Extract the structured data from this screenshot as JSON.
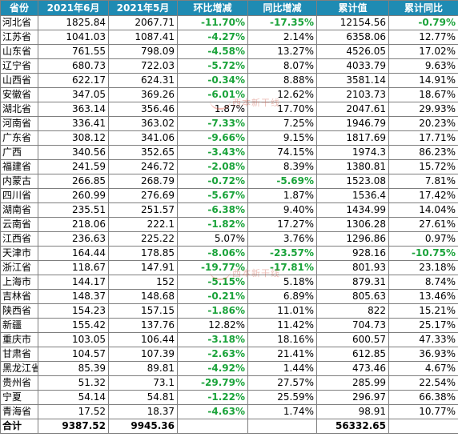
{
  "headers": [
    "省份",
    "2021年6月",
    "2021年5月",
    "环比增减",
    "同比增减",
    "累计值",
    "累计同比"
  ],
  "rows": [
    {
      "prov": "河北省",
      "jun": "1825.84",
      "may": "2067.71",
      "mom": "-11.70%",
      "yoy": "-17.35%",
      "cum": "12154.56",
      "cumyoy": "-0.79%"
    },
    {
      "prov": "江苏省",
      "jun": "1041.03",
      "may": "1087.41",
      "mom": "-4.27%",
      "yoy": "2.14%",
      "cum": "6358.06",
      "cumyoy": "12.77%"
    },
    {
      "prov": "山东省",
      "jun": "761.55",
      "may": "798.09",
      "mom": "-4.58%",
      "yoy": "13.27%",
      "cum": "4526.05",
      "cumyoy": "17.02%"
    },
    {
      "prov": "辽宁省",
      "jun": "680.73",
      "may": "722.03",
      "mom": "-5.72%",
      "yoy": "8.07%",
      "cum": "4033.79",
      "cumyoy": "9.63%"
    },
    {
      "prov": "山西省",
      "jun": "622.17",
      "may": "624.31",
      "mom": "-0.34%",
      "yoy": "8.88%",
      "cum": "3581.14",
      "cumyoy": "14.91%"
    },
    {
      "prov": "安徽省",
      "jun": "347.05",
      "may": "369.26",
      "mom": "-6.01%",
      "yoy": "12.62%",
      "cum": "2103.73",
      "cumyoy": "18.67%"
    },
    {
      "prov": "湖北省",
      "jun": "363.14",
      "may": "356.46",
      "mom": "1.87%",
      "yoy": "17.70%",
      "cum": "2047.61",
      "cumyoy": "29.93%"
    },
    {
      "prov": "河南省",
      "jun": "336.41",
      "may": "363.02",
      "mom": "-7.33%",
      "yoy": "7.25%",
      "cum": "1946.79",
      "cumyoy": "20.23%"
    },
    {
      "prov": "广东省",
      "jun": "308.12",
      "may": "341.06",
      "mom": "-9.66%",
      "yoy": "9.15%",
      "cum": "1817.69",
      "cumyoy": "17.71%"
    },
    {
      "prov": "广西",
      "jun": "340.56",
      "may": "352.65",
      "mom": "-3.43%",
      "yoy": "74.15%",
      "cum": "1974.3",
      "cumyoy": "86.23%"
    },
    {
      "prov": "福建省",
      "jun": "241.59",
      "may": "246.72",
      "mom": "-2.08%",
      "yoy": "8.39%",
      "cum": "1380.81",
      "cumyoy": "15.72%"
    },
    {
      "prov": "内蒙古",
      "jun": "266.85",
      "may": "268.79",
      "mom": "-0.72%",
      "yoy": "-5.69%",
      "cum": "1523.08",
      "cumyoy": "7.81%"
    },
    {
      "prov": "四川省",
      "jun": "260.99",
      "may": "276.69",
      "mom": "-5.67%",
      "yoy": "1.87%",
      "cum": "1536.4",
      "cumyoy": "17.42%"
    },
    {
      "prov": "湖南省",
      "jun": "235.51",
      "may": "251.57",
      "mom": "-6.38%",
      "yoy": "9.40%",
      "cum": "1434.99",
      "cumyoy": "14.04%"
    },
    {
      "prov": "云南省",
      "jun": "218.06",
      "may": "222.1",
      "mom": "-1.82%",
      "yoy": "17.27%",
      "cum": "1306.28",
      "cumyoy": "27.61%"
    },
    {
      "prov": "江西省",
      "jun": "236.63",
      "may": "225.22",
      "mom": "5.07%",
      "yoy": "3.76%",
      "cum": "1296.86",
      "cumyoy": "0.97%"
    },
    {
      "prov": "天津市",
      "jun": "164.44",
      "may": "178.85",
      "mom": "-8.06%",
      "yoy": "-23.57%",
      "cum": "928.16",
      "cumyoy": "-10.75%"
    },
    {
      "prov": "浙江省",
      "jun": "118.67",
      "may": "147.91",
      "mom": "-19.77%",
      "yoy": "-17.81%",
      "cum": "801.93",
      "cumyoy": "23.18%"
    },
    {
      "prov": "上海市",
      "jun": "144.17",
      "may": "152",
      "mom": "-5.15%",
      "yoy": "5.18%",
      "cum": "879.31",
      "cumyoy": "8.74%"
    },
    {
      "prov": "吉林省",
      "jun": "148.37",
      "may": "148.68",
      "mom": "-0.21%",
      "yoy": "6.89%",
      "cum": "805.63",
      "cumyoy": "13.46%"
    },
    {
      "prov": "陕西省",
      "jun": "154.23",
      "may": "157.15",
      "mom": "-1.86%",
      "yoy": "11.01%",
      "cum": "822",
      "cumyoy": "15.21%"
    },
    {
      "prov": "新疆",
      "jun": "155.42",
      "may": "137.76",
      "mom": "12.82%",
      "yoy": "11.42%",
      "cum": "704.73",
      "cumyoy": "25.17%"
    },
    {
      "prov": "重庆市",
      "jun": "103.05",
      "may": "106.44",
      "mom": "-3.18%",
      "yoy": "18.16%",
      "cum": "600.57",
      "cumyoy": "47.33%"
    },
    {
      "prov": "甘肃省",
      "jun": "104.57",
      "may": "107.39",
      "mom": "-2.63%",
      "yoy": "21.41%",
      "cum": "612.85",
      "cumyoy": "36.93%"
    },
    {
      "prov": "黑龙江省",
      "jun": "85.39",
      "may": "89.81",
      "mom": "-4.92%",
      "yoy": "1.44%",
      "cum": "473.46",
      "cumyoy": "4.67%"
    },
    {
      "prov": "贵州省",
      "jun": "51.32",
      "may": "73.1",
      "mom": "-29.79%",
      "yoy": "27.57%",
      "cum": "285.99",
      "cumyoy": "22.54%"
    },
    {
      "prov": "宁夏",
      "jun": "54.14",
      "may": "54.81",
      "mom": "-1.22%",
      "yoy": "25.59%",
      "cum": "296.97",
      "cumyoy": "66.38%"
    },
    {
      "prov": "青海省",
      "jun": "17.52",
      "may": "18.37",
      "mom": "-4.63%",
      "yoy": "1.74%",
      "cum": "98.91",
      "cumyoy": "10.77%"
    }
  ],
  "total": {
    "prov": "合计",
    "jun": "9387.52",
    "may": "9945.36",
    "mom": "",
    "yoy": "",
    "cum": "56332.65",
    "cumyoy": ""
  },
  "watermark": "西本新干线",
  "colors": {
    "header_bg": "#1f8bb3",
    "header_text": "#ffffff",
    "negative": "#1aa33a"
  }
}
